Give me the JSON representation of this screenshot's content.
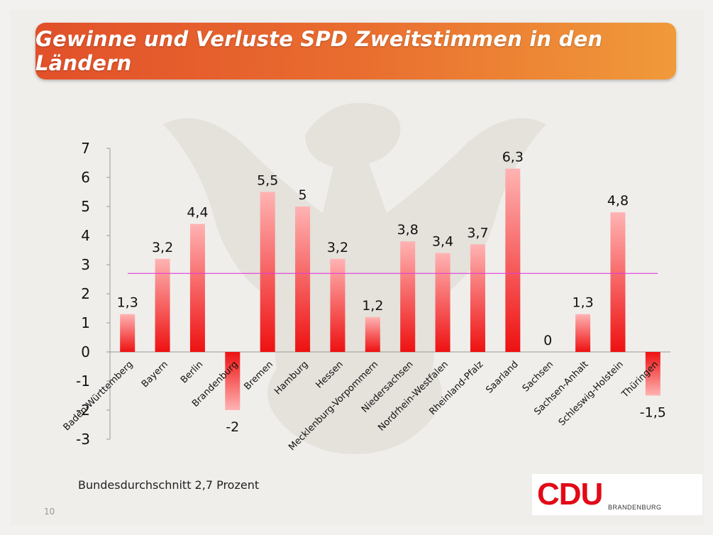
{
  "page_title": "Gewinne und Verluste SPD Zweitstimmen in den Ländern",
  "footnote": "Bundesdurchschnitt 2,7 Prozent",
  "page_number": "10",
  "logo": {
    "name": "CDU",
    "sub": "BRANDENBURG"
  },
  "colors": {
    "bar_top": "#ffb3b3",
    "bar_bottom": "#ee1111",
    "average_line": "#e03cd8",
    "title_start": "#e2502a",
    "title_end": "#f09a3a",
    "logo_red": "#e20a17"
  },
  "chart_data": {
    "type": "bar",
    "title": "Gewinne und Verluste SPD Zweitstimmen in den Ländern",
    "categories": [
      "Baden-Württemberg",
      "Bayern",
      "Berlin",
      "Brandenburg",
      "Bremen",
      "Hamburg",
      "Hessen",
      "Mecklenburg-Vorpommern",
      "Niedersachsen",
      "Nordrhein-Westfalen",
      "Rheinland-Pfalz",
      "Saarland",
      "Sachsen",
      "Sachsen-Anhalt",
      "Schleswig-Holstein",
      "Thüringen"
    ],
    "values": [
      1.3,
      3.2,
      4.4,
      -2,
      5.5,
      5,
      3.2,
      1.2,
      3.8,
      3.4,
      3.7,
      6.3,
      0,
      1.3,
      4.8,
      -1.5
    ],
    "value_labels": [
      "1,3",
      "3,2",
      "4,4",
      "-2",
      "5,5",
      "5",
      "3,2",
      "1,2",
      "3,8",
      "3,4",
      "3,7",
      "6,3",
      "0",
      "1,3",
      "4,8",
      "-1,5"
    ],
    "ylim": [
      -3,
      7
    ],
    "yticks": [
      7,
      6,
      5,
      4,
      3,
      2,
      1,
      0,
      -1,
      -2,
      -3
    ],
    "ytick_labels": [
      "7",
      "6",
      "5",
      "4",
      "3",
      "2",
      "1",
      "0",
      "-1",
      "-2",
      "-3"
    ],
    "average": 2.7,
    "grid": false,
    "xlabel": "",
    "ylabel": ""
  }
}
